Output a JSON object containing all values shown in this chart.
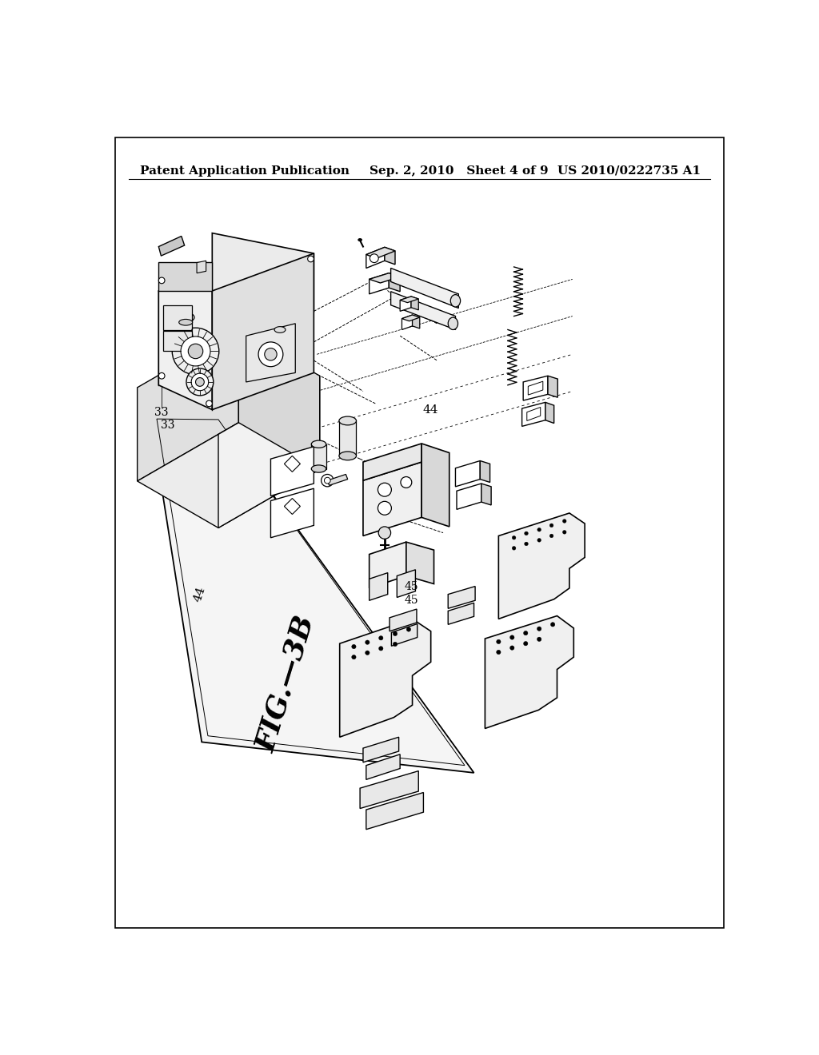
{
  "background_color": "#ffffff",
  "header_left": "Patent Application Publication",
  "header_center": "Sep. 2, 2010   Sheet 4 of 9",
  "header_right": "US 2010/0222735 A1",
  "figure_label": "FIG.—3B",
  "header_fontsize": 11,
  "figure_label_fontsize": 26,
  "ref_fontsize": 10
}
